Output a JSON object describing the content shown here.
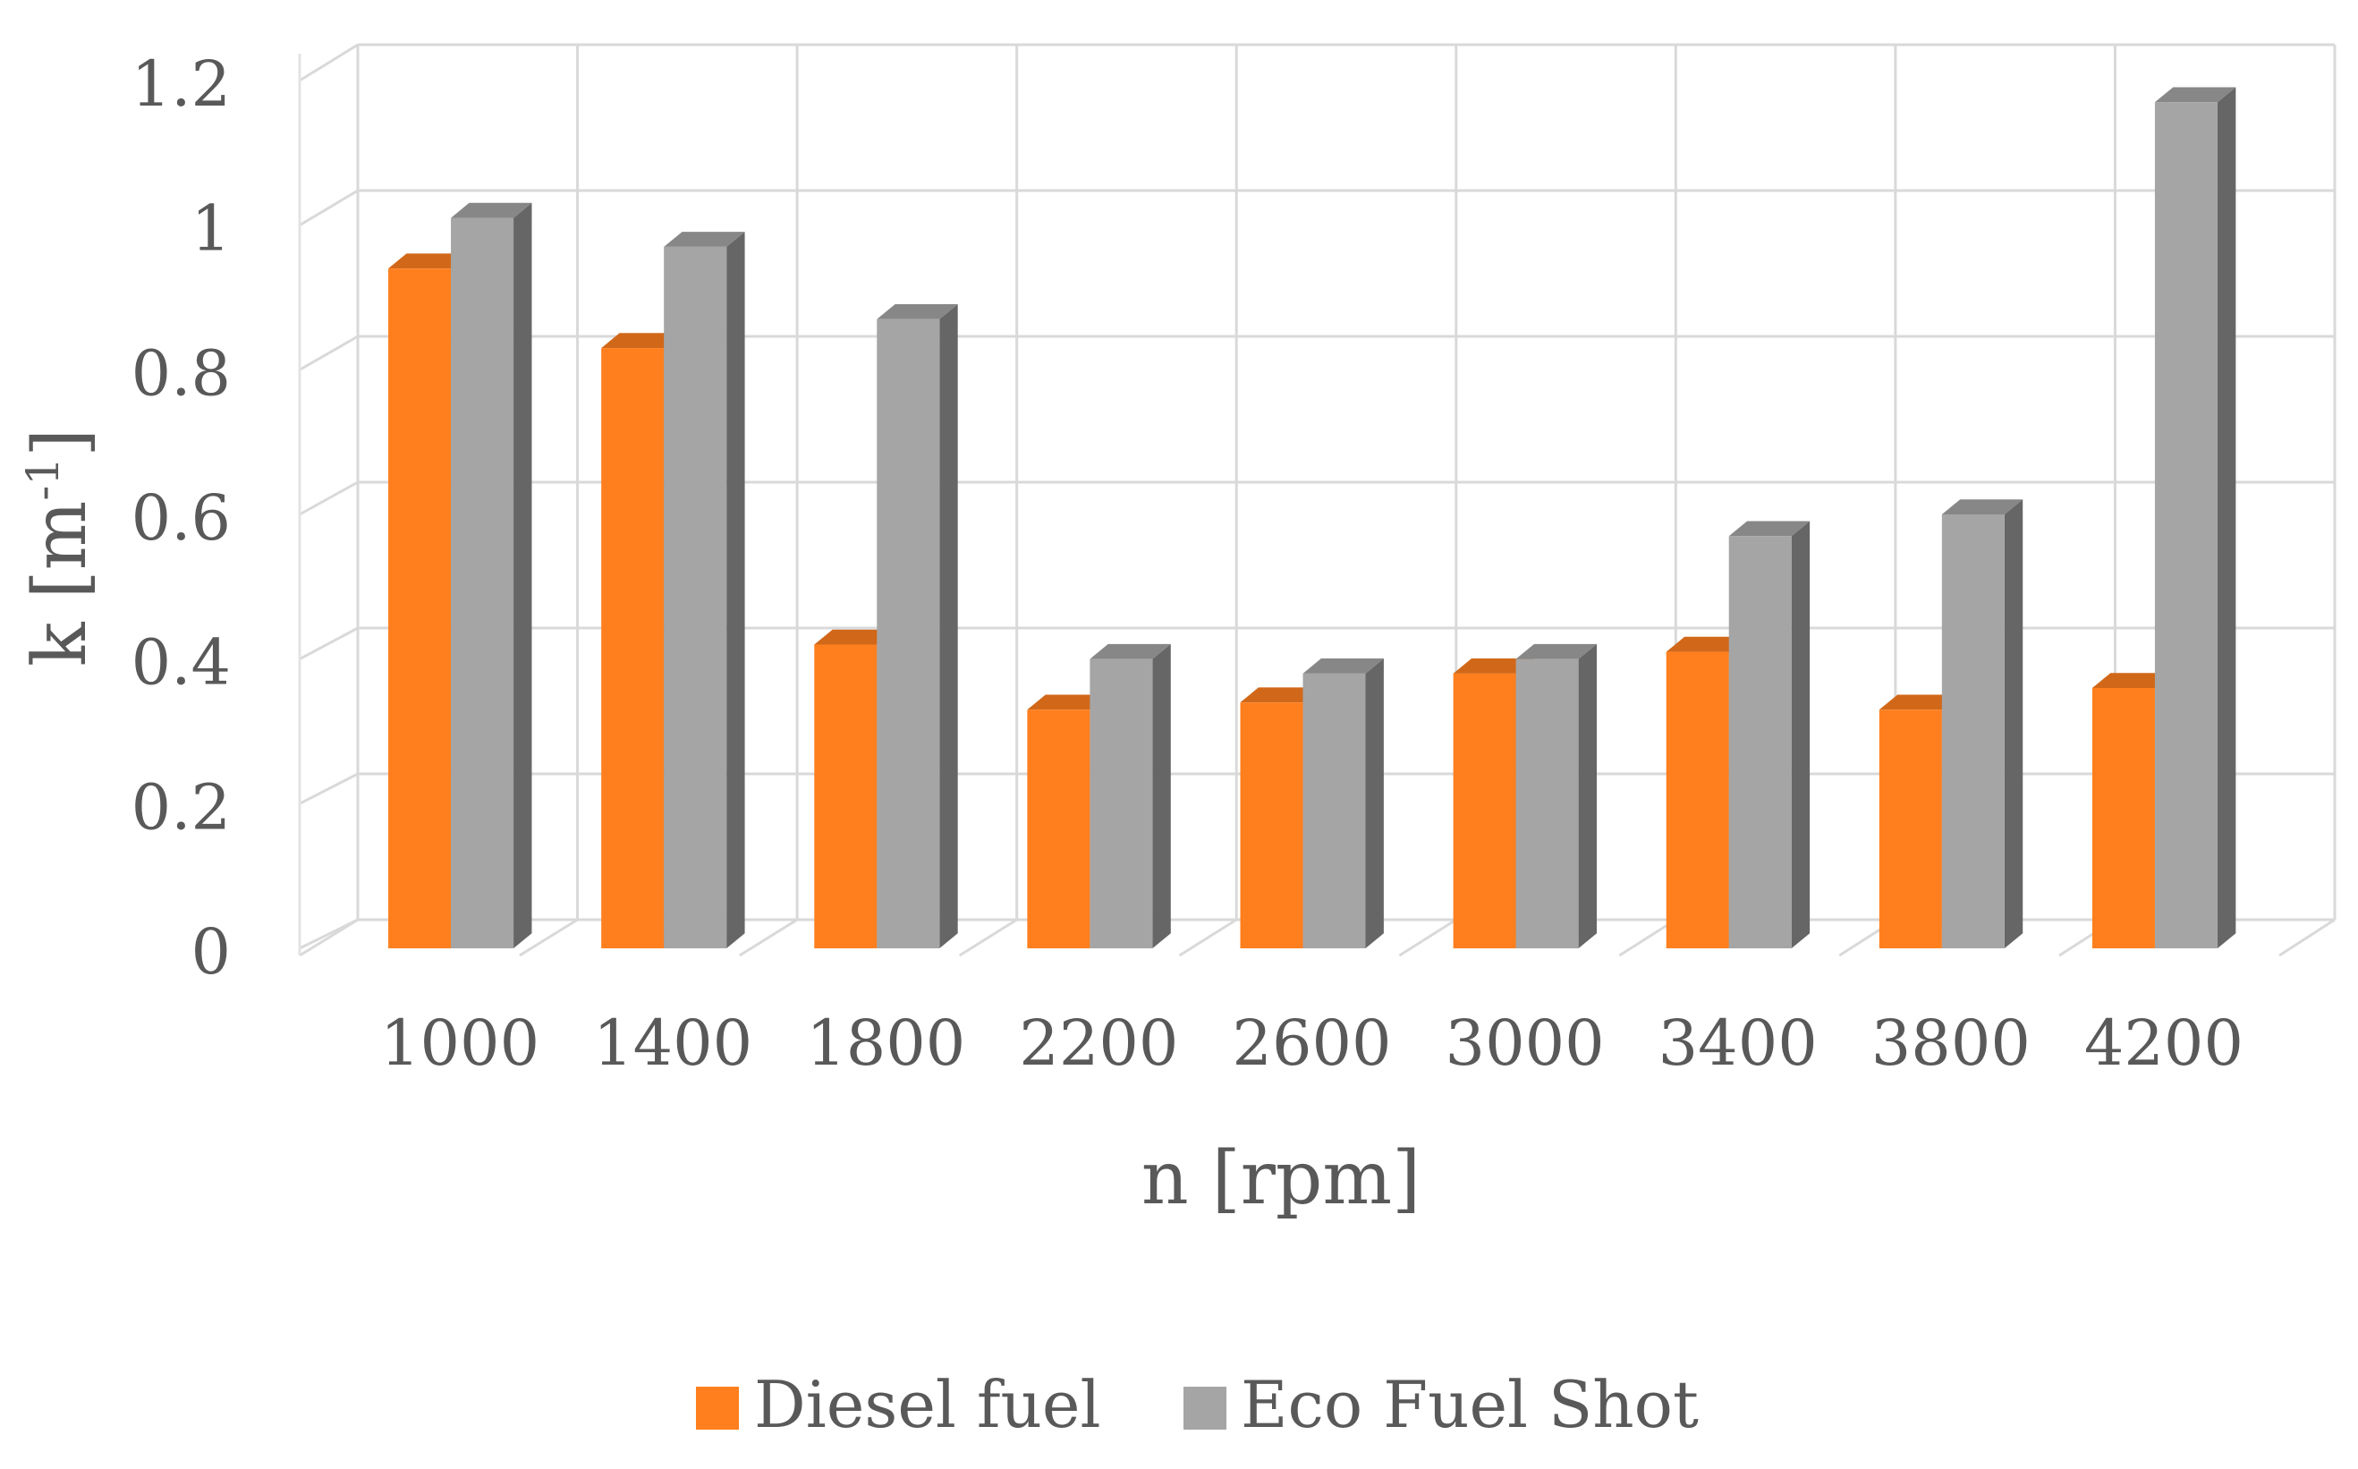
{
  "chart_data": {
    "type": "bar",
    "style": "3d-clustered-column",
    "categories": [
      "1000",
      "1400",
      "1800",
      "2200",
      "2600",
      "3000",
      "3400",
      "3800",
      "4200"
    ],
    "series": [
      {
        "name": "Diesel fuel",
        "color": "#ff7f1e",
        "values": [
          0.94,
          0.83,
          0.42,
          0.33,
          0.34,
          0.38,
          0.41,
          0.33,
          0.36
        ]
      },
      {
        "name": "Eco Fuel Shot",
        "color": "#a5a5a5",
        "values": [
          1.01,
          0.97,
          0.87,
          0.4,
          0.38,
          0.4,
          0.57,
          0.6,
          1.17
        ]
      }
    ],
    "y_ticks": [
      "0",
      "0.2",
      "0.4",
      "0.6",
      "0.8",
      "1",
      "1.2"
    ],
    "ylim": [
      0,
      1.2
    ],
    "xlabel": "n [rpm]",
    "ylabel_main": "k [m",
    "ylabel_sup": "-1",
    "ylabel_end": "]",
    "grid": true,
    "legend_position": "bottom"
  }
}
